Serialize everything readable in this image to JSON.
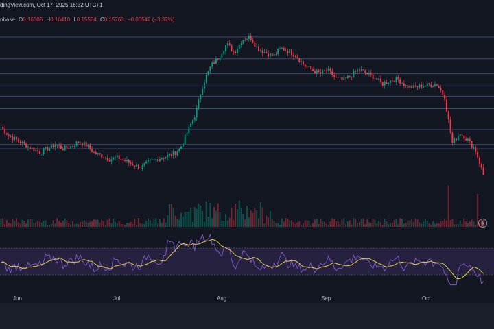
{
  "header": {
    "publisher_line": "dingView.com, Oct 17, 2025 16:32 UTC+1",
    "exchange_fragment": "nbase",
    "open_label": "O",
    "open_value": "0.16306",
    "high_label": "H",
    "high_value": "0.16410",
    "low_label": "L",
    "low_value": "0.15524",
    "close_label": "C",
    "close_value": "0.15763",
    "change_value": "−0.00542 (−3.32%)"
  },
  "x_axis": {
    "labels": [
      "Jun",
      "Jul",
      "Aug",
      "Sep",
      "Oct"
    ]
  },
  "icons": {
    "lightning": "lightning-icon"
  },
  "colors": {
    "background": "#131722",
    "candle_up": "#089981",
    "candle_down": "#f23645",
    "level_line": "#4a5b8a",
    "rsi_line": "#7e57c2",
    "rsi_ma": "#e6d14a",
    "rsi_band": "#2a2447"
  },
  "chart_data": {
    "type": "candlestick",
    "series": [
      {
        "approx_closes": [
          0.215,
          0.205,
          0.2,
          0.195,
          0.19,
          0.186,
          0.19,
          0.195,
          0.19,
          0.193,
          0.198,
          0.194,
          0.185,
          0.182,
          0.178,
          0.18,
          0.176,
          0.172,
          0.168,
          0.175,
          0.178,
          0.181,
          0.183,
          0.19,
          0.21,
          0.23,
          0.265,
          0.285,
          0.295,
          0.31,
          0.3,
          0.315,
          0.318,
          0.305,
          0.3,
          0.296,
          0.305,
          0.302,
          0.296,
          0.285,
          0.28,
          0.276,
          0.28,
          0.271,
          0.268,
          0.274,
          0.281,
          0.276,
          0.272,
          0.264,
          0.268,
          0.27,
          0.262,
          0.26,
          0.262,
          0.263,
          0.264,
          0.25,
          0.196,
          0.208,
          0.2,
          0.188,
          0.16
        ]
      }
    ],
    "price_levels": [
      0.318,
      0.293,
      0.276,
      0.262,
      0.25,
      0.236,
      0.212,
      0.195,
      0.19
    ],
    "rsi_band": [
      30,
      70
    ]
  }
}
